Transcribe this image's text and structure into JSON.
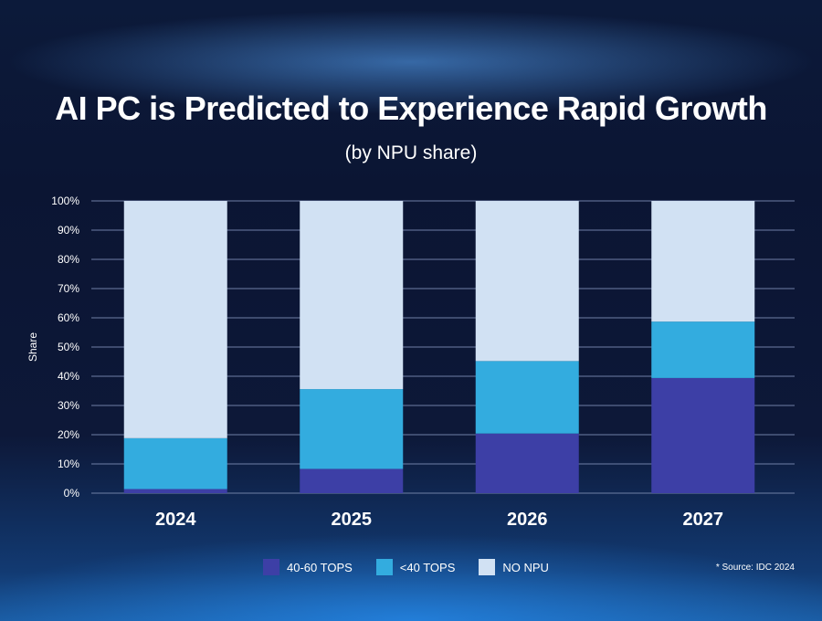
{
  "chart_data": {
    "type": "bar",
    "stacked": true,
    "title": "AI PC is Predicted to Experience Rapid Growth",
    "subtitle": "(by NPU share)",
    "ylabel": "Share",
    "xlabel": "",
    "ylim": [
      0,
      100
    ],
    "yticks": [
      "0%",
      "10%",
      "20%",
      "30%",
      "40%",
      "50%",
      "60%",
      "70%",
      "80%",
      "90%",
      "100%"
    ],
    "categories": [
      "2024",
      "2025",
      "2026",
      "2027"
    ],
    "series": [
      {
        "name": "40-60 TOPS",
        "color": "#3d3fa6",
        "values": [
          1.4,
          8.3,
          20.4,
          39.4
        ]
      },
      {
        "name": "<40 TOPS",
        "color": "#33acdf",
        "values": [
          17.4,
          27.3,
          24.8,
          19.3
        ]
      },
      {
        "name": "NO NPU",
        "color": "#d1e1f3",
        "values": [
          81.2,
          64.4,
          54.8,
          41.3
        ]
      }
    ],
    "grid": true,
    "legend": "bottom",
    "source": "* Source: IDC 2024"
  }
}
